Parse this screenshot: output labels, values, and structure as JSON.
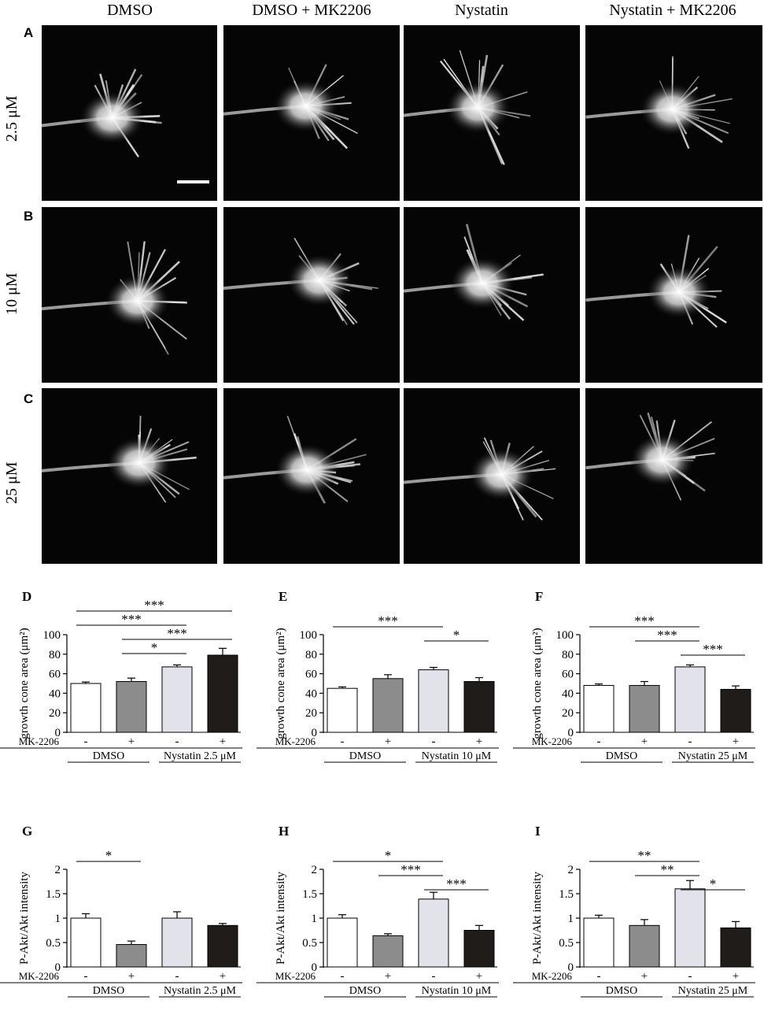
{
  "figure": {
    "column_headers": [
      "DMSO",
      "DMSO + MK2206",
      "Nystatin",
      "Nystatin + MK2206"
    ],
    "rows": [
      {
        "letter": "A",
        "concentration": "2.5 μM"
      },
      {
        "letter": "B",
        "concentration": "10 μM"
      },
      {
        "letter": "C",
        "concentration": "25 μM"
      }
    ]
  },
  "chart_data": [
    {
      "panel": "D",
      "type": "bar",
      "ylabel": "growth cone area (μm²)",
      "yticks": [
        0,
        20,
        40,
        60,
        80,
        100
      ],
      "ylim": [
        0,
        100
      ],
      "treatment_label": "MK-2206",
      "treatment_signs": [
        "-",
        "+",
        "-",
        "+"
      ],
      "group_labels": [
        "DMSO",
        "Nystatin 2.5 μM"
      ],
      "values": [
        50,
        52,
        67,
        79
      ],
      "errors": [
        1.5,
        3.5,
        2,
        7
      ],
      "colors": [
        "#ffffff",
        "#8c8c8c",
        "#e2e3ea",
        "#201c19"
      ],
      "significance": [
        {
          "from": 0,
          "to": 3,
          "label": "***"
        },
        {
          "from": 0,
          "to": 2,
          "label": "***"
        },
        {
          "from": 1,
          "to": 3,
          "label": "***"
        },
        {
          "from": 1,
          "to": 2,
          "label": "*"
        }
      ]
    },
    {
      "panel": "E",
      "type": "bar",
      "ylabel": "growth cone area (μm²)",
      "yticks": [
        0,
        20,
        40,
        60,
        80,
        100
      ],
      "ylim": [
        0,
        100
      ],
      "treatment_label": "MK-2206",
      "treatment_signs": [
        "-",
        "+",
        "-",
        "+"
      ],
      "group_labels": [
        "DMSO",
        "Nystatin 10 μM"
      ],
      "values": [
        45,
        55,
        64,
        52
      ],
      "errors": [
        1.5,
        4,
        2.5,
        4
      ],
      "colors": [
        "#ffffff",
        "#8c8c8c",
        "#e2e3ea",
        "#201c19"
      ],
      "significance": [
        {
          "from": 0,
          "to": 2,
          "label": "***"
        },
        {
          "from": 2,
          "to": 3,
          "label": "*"
        }
      ]
    },
    {
      "panel": "F",
      "type": "bar",
      "ylabel": "growth cone area (μm²)",
      "yticks": [
        0,
        20,
        40,
        60,
        80,
        100
      ],
      "ylim": [
        0,
        100
      ],
      "treatment_label": "MK-2206",
      "treatment_signs": [
        "-",
        "+",
        "-",
        "+"
      ],
      "group_labels": [
        "DMSO",
        "Nystatin 25 μM"
      ],
      "values": [
        48,
        48,
        67,
        44
      ],
      "errors": [
        1.5,
        4,
        2,
        3.5
      ],
      "colors": [
        "#ffffff",
        "#8c8c8c",
        "#e2e3ea",
        "#201c19"
      ],
      "significance": [
        {
          "from": 0,
          "to": 2,
          "label": "***"
        },
        {
          "from": 1,
          "to": 2,
          "label": "***"
        },
        {
          "from": 2,
          "to": 3,
          "label": "***"
        }
      ]
    },
    {
      "panel": "G",
      "type": "bar",
      "ylabel": "P-Akt/Akt intensity",
      "yticks": [
        0,
        0.5,
        1,
        1.5,
        2
      ],
      "ylim": [
        0,
        2
      ],
      "treatment_label": "MK-2206",
      "treatment_signs": [
        "-",
        "+",
        "-",
        "+"
      ],
      "group_labels": [
        "DMSO",
        "Nystatin 2.5 μM"
      ],
      "values": [
        1.0,
        0.46,
        1.0,
        0.85
      ],
      "errors": [
        0.09,
        0.07,
        0.13,
        0.04
      ],
      "colors": [
        "#ffffff",
        "#8c8c8c",
        "#e2e3ea",
        "#201c19"
      ],
      "significance": [
        {
          "from": 0,
          "to": 1,
          "label": "*"
        }
      ]
    },
    {
      "panel": "H",
      "type": "bar",
      "ylabel": "P-Akt/Akt intensity",
      "yticks": [
        0,
        0.5,
        1,
        1.5,
        2
      ],
      "ylim": [
        0,
        2
      ],
      "treatment_label": "MK-2206",
      "treatment_signs": [
        "-",
        "+",
        "-",
        "+"
      ],
      "group_labels": [
        "DMSO",
        "Nystatin 10 μM"
      ],
      "values": [
        1.0,
        0.64,
        1.39,
        0.75
      ],
      "errors": [
        0.07,
        0.04,
        0.14,
        0.1
      ],
      "colors": [
        "#ffffff",
        "#8c8c8c",
        "#e2e3ea",
        "#201c19"
      ],
      "significance": [
        {
          "from": 0,
          "to": 2,
          "label": "*"
        },
        {
          "from": 1,
          "to": 2,
          "label": "***"
        },
        {
          "from": 2,
          "to": 3,
          "label": "***"
        }
      ]
    },
    {
      "panel": "I",
      "type": "bar",
      "ylabel": "P-Akt/Akt intensity",
      "yticks": [
        0,
        0.5,
        1,
        1.5,
        2
      ],
      "ylim": [
        0,
        2
      ],
      "treatment_label": "MK-2206",
      "treatment_signs": [
        "-",
        "+",
        "-",
        "+"
      ],
      "group_labels": [
        "DMSO",
        "Nystatin 25 μM"
      ],
      "values": [
        1.0,
        0.85,
        1.6,
        0.8
      ],
      "errors": [
        0.06,
        0.12,
        0.17,
        0.13
      ],
      "colors": [
        "#ffffff",
        "#8c8c8c",
        "#e2e3ea",
        "#201c19"
      ],
      "significance": [
        {
          "from": 0,
          "to": 2,
          "label": "**"
        },
        {
          "from": 1,
          "to": 2,
          "label": "**"
        },
        {
          "from": 2,
          "to": 3,
          "label": "*"
        }
      ]
    }
  ]
}
